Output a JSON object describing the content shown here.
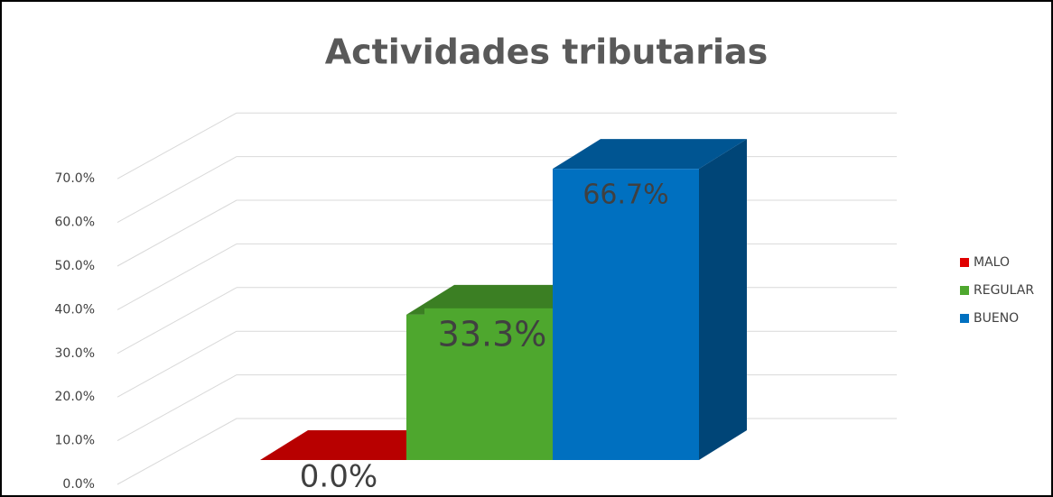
{
  "chart_data": {
    "type": "bar3d",
    "title": "Actividades tributarias",
    "series": [
      {
        "name": "MALO",
        "color": "#e00000",
        "values": [
          0
        ],
        "value_labels": [
          "0.0%"
        ]
      },
      {
        "name": "REGULAR",
        "color": "#4ea72e",
        "values": [
          33.3
        ],
        "value_labels": [
          "33.3%"
        ]
      },
      {
        "name": "BUENO",
        "color": "#0070c0",
        "values": [
          66.7
        ],
        "value_labels": [
          "66.7%"
        ]
      }
    ],
    "ylim": [
      0,
      70
    ],
    "yticks": [
      {
        "value": 0,
        "label": "0.0%"
      },
      {
        "value": 10,
        "label": "10.0%"
      },
      {
        "value": 20,
        "label": "20.0%"
      },
      {
        "value": 30,
        "label": "30.0%"
      },
      {
        "value": 40,
        "label": "40.0%"
      },
      {
        "value": 50,
        "label": "50.0%"
      },
      {
        "value": 60,
        "label": "60.0%"
      },
      {
        "value": 70,
        "label": "70.0%"
      }
    ],
    "grid": true,
    "legend": "right"
  }
}
